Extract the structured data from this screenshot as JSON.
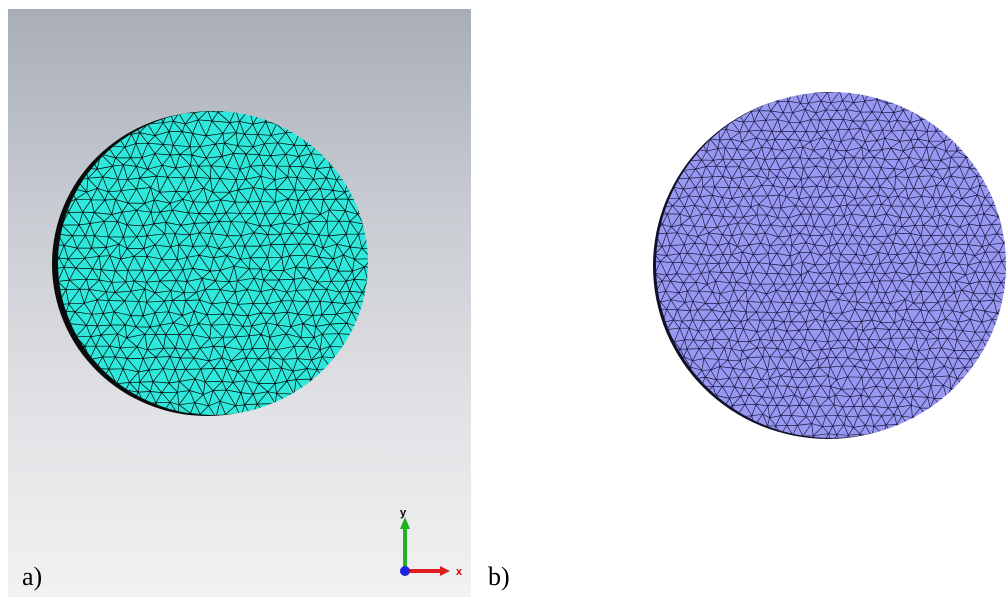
{
  "panels": [
    {
      "label": "a)",
      "disk_fill": "#2ee8dc",
      "mesh_color": "#000000",
      "background": "gradient-gray"
    },
    {
      "label": "b)",
      "disk_fill": "#9898f2",
      "mesh_color": "#1a1a44",
      "background": "#ffffff"
    }
  ],
  "axes": {
    "x_label": "x",
    "y_label": "y",
    "x_color": "#e02020",
    "y_color": "#20b020",
    "z_color": "#2020e0"
  },
  "icons": [
    "coordinate-axes-icon"
  ]
}
